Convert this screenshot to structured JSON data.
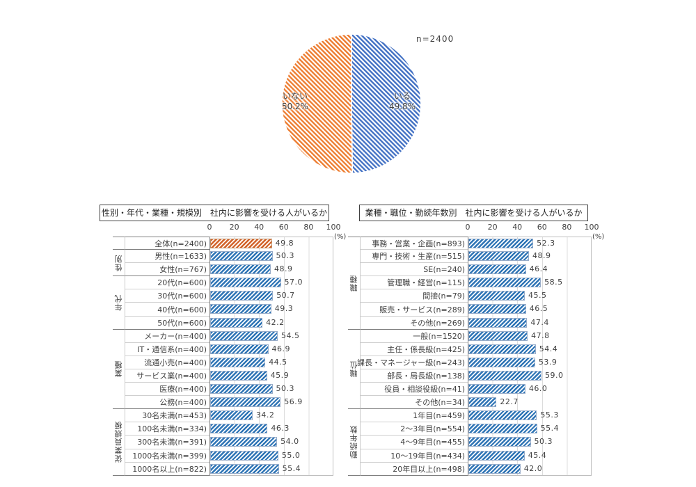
{
  "chart_data": {
    "pie": {
      "type": "pie",
      "n_label": "n=2400",
      "slices": [
        {
          "name": "いる",
          "pct": 49.8,
          "color": "#4472C4",
          "hatch": "diagonal"
        },
        {
          "name": "いない",
          "pct": 50.2,
          "color": "#ED7D31",
          "hatch": "diagonal"
        }
      ]
    },
    "bar_charts": [
      {
        "type": "bar-horizontal",
        "title": "性別・年代・業種・規模別　社内に影響を受ける人がいるか",
        "axis": {
          "ticks": [
            0,
            20,
            40,
            60,
            80,
            100
          ],
          "unit": "(%)",
          "min": 0,
          "max": 100
        },
        "bar_color": "#2E74B5",
        "accent_color": "#D2622A",
        "groups": [
          {
            "section": "",
            "rows": [
              {
                "label": "全体(n=2400)",
                "value": 49.8,
                "accent": true
              }
            ]
          },
          {
            "section": "性別",
            "rows": [
              {
                "label": "男性(n=1633)",
                "value": 50.3
              },
              {
                "label": "女性(n=767)",
                "value": 48.9
              }
            ]
          },
          {
            "section": "年代",
            "rows": [
              {
                "label": "20代(n=600)",
                "value": 57.0
              },
              {
                "label": "30代(n=600)",
                "value": 50.7
              },
              {
                "label": "40代(n=600)",
                "value": 49.3
              },
              {
                "label": "50代(n=600)",
                "value": 42.2
              }
            ]
          },
          {
            "section": "業種",
            "rows": [
              {
                "label": "メーカー(n=400)",
                "value": 54.5
              },
              {
                "label": "IT・通信系(n=400)",
                "value": 46.9
              },
              {
                "label": "流通小売(n=400)",
                "value": 44.5
              },
              {
                "label": "サービス業(n=400)",
                "value": 45.9
              },
              {
                "label": "医療(n=400)",
                "value": 50.3
              },
              {
                "label": "公務(n=400)",
                "value": 56.9
              }
            ]
          },
          {
            "section": "従業員規模",
            "rows": [
              {
                "label": "30名未満(n=453)",
                "value": 34.2
              },
              {
                "label": "100名未満(n=334)",
                "value": 46.3
              },
              {
                "label": "300名未満(n=391)",
                "value": 54.0
              },
              {
                "label": "1000名未満(n=399)",
                "value": 55.0
              },
              {
                "label": "1000名以上(n=822)",
                "value": 55.4
              }
            ]
          }
        ]
      },
      {
        "type": "bar-horizontal",
        "title": "業種・職位・勤続年数別　社内に影響を受ける人がいるか",
        "axis": {
          "ticks": [
            0,
            20,
            40,
            60,
            80,
            100
          ],
          "unit": "(%)",
          "min": 0,
          "max": 100
        },
        "bar_color": "#2E74B5",
        "accent_color": "#D2622A",
        "groups": [
          {
            "section": "職種",
            "rows": [
              {
                "label": "事務・営業・企画(n=893)",
                "value": 52.3
              },
              {
                "label": "専門・技術・生産(n=515)",
                "value": 48.9
              },
              {
                "label": "SE(n=240)",
                "value": 46.4
              },
              {
                "label": "管理職・経営(n=115)",
                "value": 58.5
              },
              {
                "label": "間接(n=79)",
                "value": 45.5
              },
              {
                "label": "販売・サービス(n=289)",
                "value": 46.5
              },
              {
                "label": "その他(n=269)",
                "value": 47.4
              }
            ]
          },
          {
            "section": "職位",
            "rows": [
              {
                "label": "一般(n=1520)",
                "value": 47.8
              },
              {
                "label": "主任・係長級(n=425)",
                "value": 54.4
              },
              {
                "label": "課長・マネージャー級(n=243)",
                "value": 53.9
              },
              {
                "label": "部長・局長級(n=138)",
                "value": 59.0
              },
              {
                "label": "役員・相談役級(n=41)",
                "value": 46.0
              },
              {
                "label": "その他(n=34)",
                "value": 22.7
              }
            ]
          },
          {
            "section": "勤続年数",
            "rows": [
              {
                "label": "1年目(n=459)",
                "value": 55.3
              },
              {
                "label": "2～3年目(n=554)",
                "value": 55.4
              },
              {
                "label": "4～9年目(n=455)",
                "value": 50.3
              },
              {
                "label": "10～19年目(n=434)",
                "value": 45.4
              },
              {
                "label": "20年目以上(n=498)",
                "value": 42.0
              }
            ]
          }
        ]
      }
    ]
  }
}
